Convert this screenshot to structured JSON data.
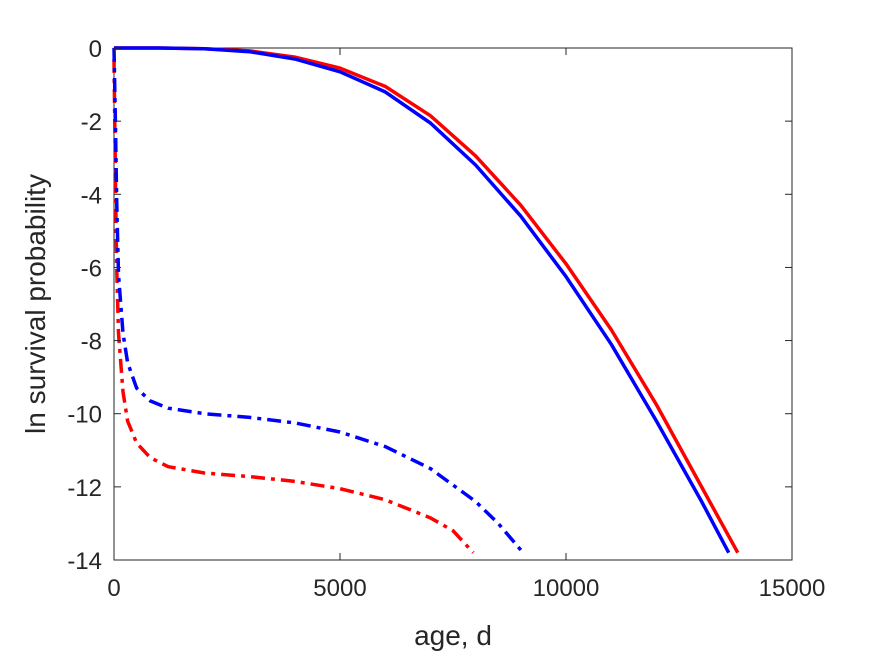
{
  "chart_data": {
    "type": "line",
    "title": "",
    "xlabel": "age, d",
    "ylabel": "ln survival probability",
    "xlim": [
      0,
      15000
    ],
    "ylim": [
      -14,
      0
    ],
    "xticks": [
      0,
      5000,
      10000,
      15000
    ],
    "xtick_labels": [
      "0",
      "5000",
      "10000",
      "15000"
    ],
    "yticks": [
      0,
      -2,
      -4,
      -6,
      -8,
      -10,
      -12,
      -14
    ],
    "ytick_labels": [
      "0",
      "-2",
      "-4",
      "-6",
      "-8",
      "-10",
      "-12",
      "-14"
    ],
    "grid": false,
    "legend": "none",
    "series": [
      {
        "color": "#ff0000",
        "style": "solid",
        "x": [
          0,
          1000,
          2000,
          3000,
          4000,
          5000,
          6000,
          7000,
          8000,
          9000,
          10000,
          11000,
          12000,
          13000,
          13800
        ],
        "y": [
          0,
          0,
          -0.02,
          -0.08,
          -0.25,
          -0.55,
          -1.05,
          -1.85,
          -2.95,
          -4.3,
          -5.9,
          -7.7,
          -9.75,
          -12.0,
          -13.8
        ]
      },
      {
        "color": "#0000ff",
        "style": "solid",
        "x": [
          0,
          1000,
          2000,
          3000,
          4000,
          5000,
          6000,
          7000,
          8000,
          9000,
          10000,
          11000,
          12000,
          13000,
          13600
        ],
        "y": [
          0,
          0,
          -0.02,
          -0.1,
          -0.3,
          -0.65,
          -1.2,
          -2.05,
          -3.2,
          -4.6,
          -6.25,
          -8.1,
          -10.2,
          -12.4,
          -13.8
        ]
      },
      {
        "color": "#ff0000",
        "style": "dashdot",
        "x": [
          0,
          30,
          60,
          100,
          200,
          300,
          500,
          800,
          1200,
          2000,
          3000,
          4000,
          5000,
          6000,
          7000,
          7500,
          7950
        ],
        "y": [
          -0.3,
          -3.5,
          -6.0,
          -7.8,
          -9.4,
          -10.2,
          -10.8,
          -11.2,
          -11.45,
          -11.62,
          -11.72,
          -11.85,
          -12.05,
          -12.35,
          -12.85,
          -13.2,
          -13.8
        ]
      },
      {
        "color": "#0000ff",
        "style": "dashdot",
        "x": [
          0,
          30,
          60,
          100,
          200,
          300,
          500,
          800,
          1200,
          2000,
          3000,
          4000,
          5000,
          6000,
          7000,
          8000,
          8500,
          9050
        ],
        "y": [
          0,
          -2.0,
          -4.2,
          -6.2,
          -7.8,
          -8.6,
          -9.3,
          -9.65,
          -9.85,
          -10.0,
          -10.1,
          -10.25,
          -10.5,
          -10.9,
          -11.5,
          -12.4,
          -13.0,
          -13.8
        ]
      }
    ]
  }
}
